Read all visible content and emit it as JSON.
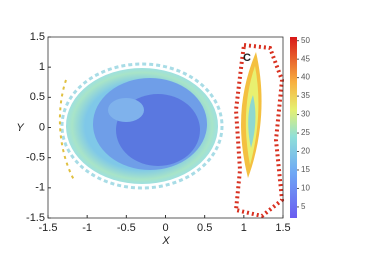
{
  "chart_data": {
    "type": "heatmap",
    "panel_label": "C",
    "xlabel": "X",
    "ylabel": "Y",
    "xlim": [
      -1.5,
      1.5
    ],
    "xticks": [
      -1.5,
      -1,
      -0.5,
      0,
      0.5,
      1,
      1.5
    ],
    "ylim": [
      -1.5,
      1.5
    ],
    "yticks": [
      -1.5,
      -1,
      -0.5,
      0,
      0.5,
      1,
      1.5
    ],
    "colorbar": {
      "lim": [
        2,
        51
      ],
      "ticks": [
        5,
        10,
        15,
        20,
        25,
        30,
        35,
        40,
        45,
        50
      ]
    }
  }
}
